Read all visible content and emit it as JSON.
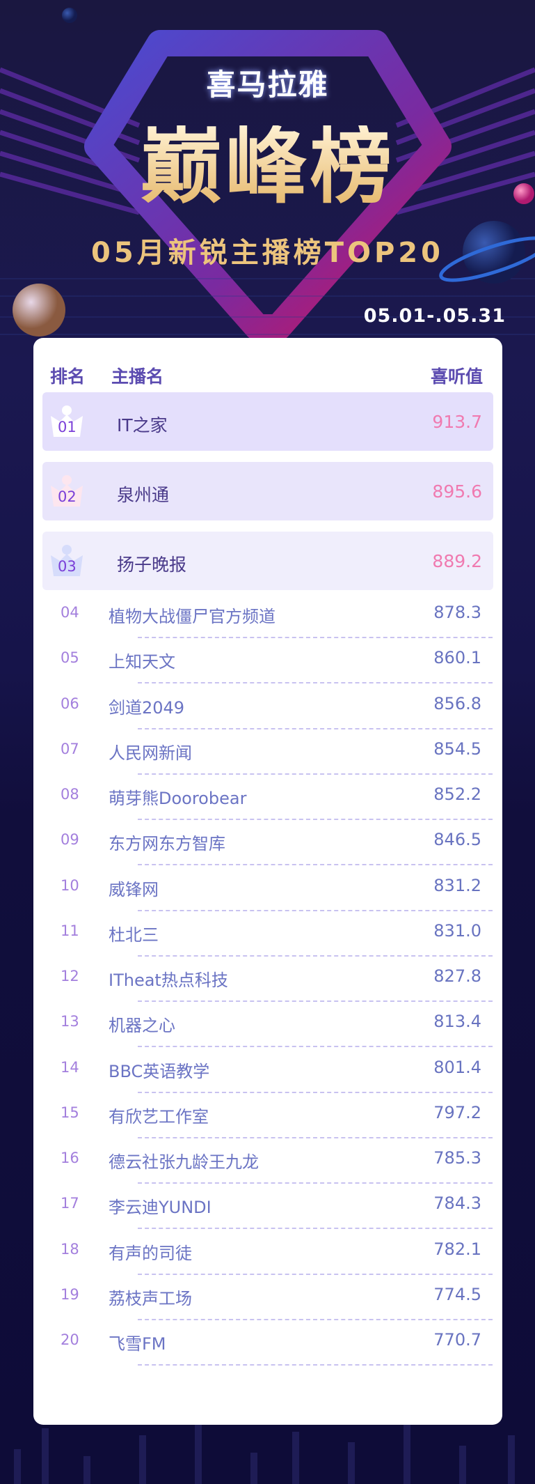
{
  "brand": "喜马拉雅",
  "title": "巅峰榜",
  "subtitle": "05月新锐主播榜TOP20",
  "date_range": "05.01-.05.31",
  "table": {
    "headers": {
      "rank": "排名",
      "name": "主播名",
      "score": "喜听值"
    },
    "rows": [
      {
        "rank": "01",
        "name": "IT之家",
        "score": "913.7"
      },
      {
        "rank": "02",
        "name": "泉州通",
        "score": "895.6"
      },
      {
        "rank": "03",
        "name": "扬子晚报",
        "score": "889.2"
      },
      {
        "rank": "04",
        "name": "植物大战僵尸官方频道",
        "score": "878.3"
      },
      {
        "rank": "05",
        "name": "上知天文",
        "score": "860.1"
      },
      {
        "rank": "06",
        "name": "剑道2049",
        "score": "856.8"
      },
      {
        "rank": "07",
        "name": "人民网新闻",
        "score": "854.5"
      },
      {
        "rank": "08",
        "name": "萌芽熊Doorobear",
        "score": "852.2"
      },
      {
        "rank": "09",
        "name": "东方网东方智库",
        "score": "846.5"
      },
      {
        "rank": "10",
        "name": "威锋网",
        "score": "831.2"
      },
      {
        "rank": "11",
        "name": "杜北三",
        "score": "831.0"
      },
      {
        "rank": "12",
        "name": "ITheat热点科技",
        "score": "827.8"
      },
      {
        "rank": "13",
        "name": "机器之心",
        "score": "813.4"
      },
      {
        "rank": "14",
        "name": "BBC英语教学",
        "score": "801.4"
      },
      {
        "rank": "15",
        "name": "有欣艺工作室",
        "score": "797.2"
      },
      {
        "rank": "16",
        "name": "德云社张九龄王九龙",
        "score": "785.3"
      },
      {
        "rank": "17",
        "name": "李云迪YUNDI",
        "score": "784.3"
      },
      {
        "rank": "18",
        "name": "有声的司徒",
        "score": "782.1"
      },
      {
        "rank": "19",
        "name": "荔枝声工场",
        "score": "774.5"
      },
      {
        "rank": "20",
        "name": "飞雪FM",
        "score": "770.7"
      }
    ]
  },
  "colors": {
    "accent_pink": "#f07ab0",
    "header_purple": "#5b4bb0",
    "gold": "#ecc47d",
    "background": "#14123a"
  }
}
